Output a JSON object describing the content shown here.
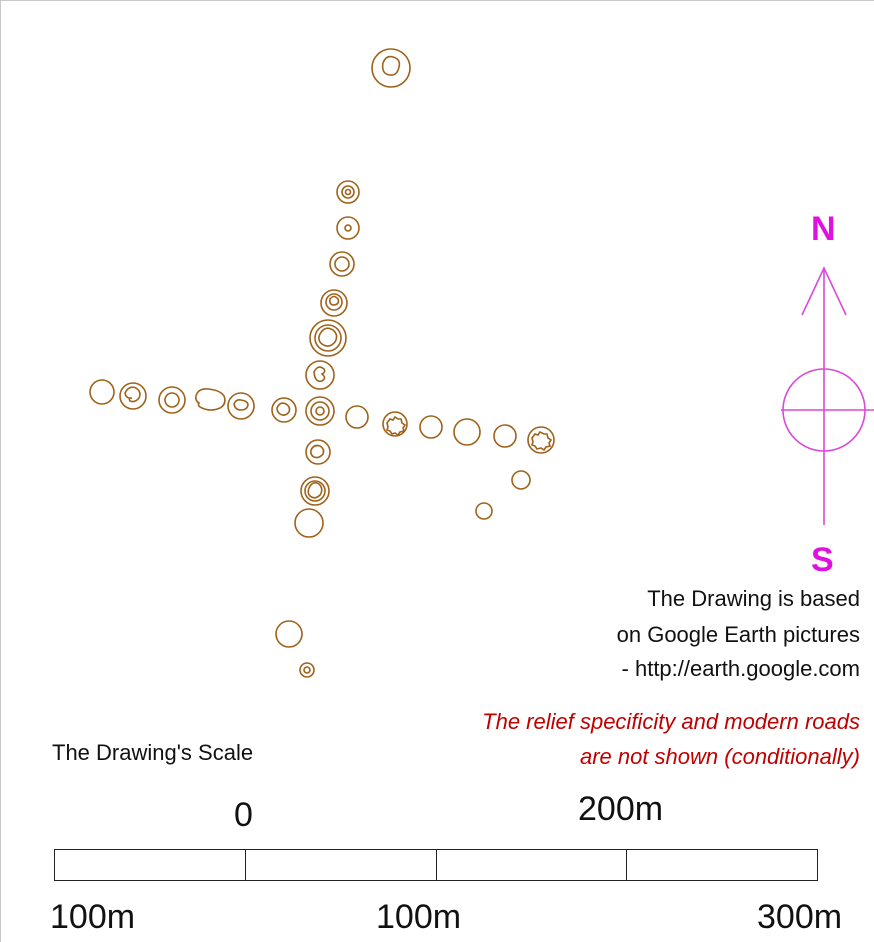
{
  "colors": {
    "circle_stroke": "#a0621a",
    "compass": "#d94ad9",
    "compass_letters": "#e010e0",
    "note_text": "#111111",
    "warning_text": "#c00000"
  },
  "compass": {
    "north_label": "N",
    "south_label": "S"
  },
  "source_note": {
    "line1": "The Drawing is based",
    "line2": "on Google Earth pictures",
    "line3": "- http://earth.google.com"
  },
  "warning_note": {
    "line1": "The relief specificity and modern roads",
    "line2": "are not shown (conditionally)"
  },
  "scale": {
    "title": "The Drawing's Scale",
    "top_labels": [
      "0",
      "200m"
    ],
    "bottom_labels": [
      "100m",
      "100m",
      "300m"
    ],
    "segments": 4
  },
  "features": {
    "description_items": [
      {
        "kind": "ring",
        "group": "north-outlier"
      },
      {
        "kind": "ring",
        "group": "north-arm"
      },
      {
        "kind": "ring",
        "group": "west-arm"
      },
      {
        "kind": "ring",
        "group": "east-arm"
      },
      {
        "kind": "ring",
        "group": "south-arm"
      },
      {
        "kind": "ring",
        "group": "south-east-outliers"
      }
    ]
  }
}
